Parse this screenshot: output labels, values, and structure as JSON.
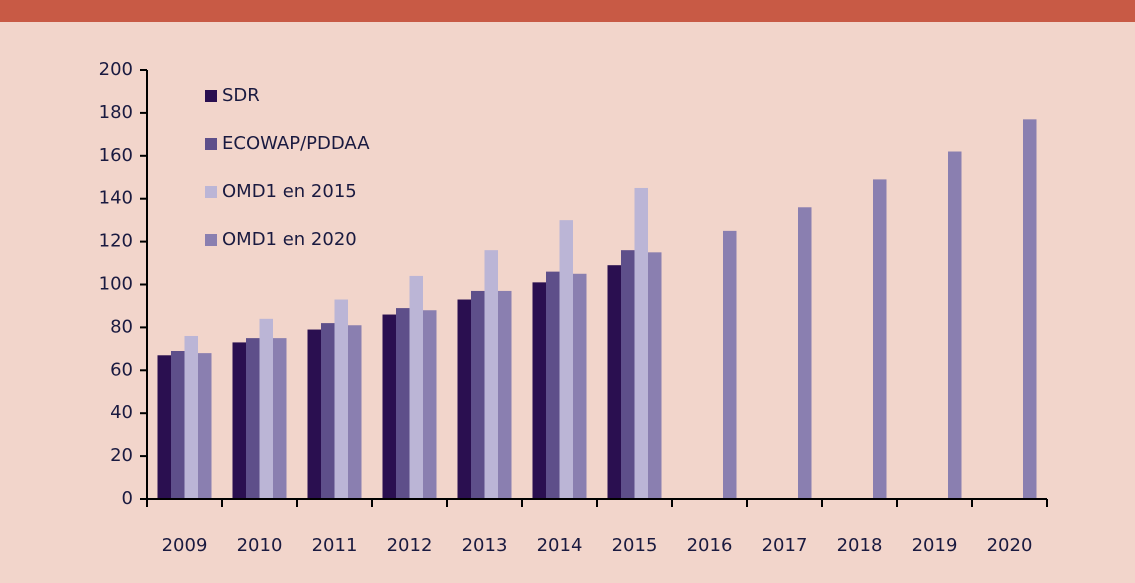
{
  "chart_data": {
    "type": "bar",
    "categories": [
      "2009",
      "2010",
      "2011",
      "2012",
      "2013",
      "2014",
      "2015",
      "2016",
      "2017",
      "2018",
      "2019",
      "2020"
    ],
    "series": [
      {
        "name": "SDR",
        "color": "#2a0f50",
        "values": [
          67,
          73,
          79,
          86,
          93,
          101,
          109,
          null,
          null,
          null,
          null,
          null
        ]
      },
      {
        "name": "ECOWAP/PDDAA",
        "color": "#5e4f8a",
        "values": [
          69,
          75,
          82,
          89,
          97,
          106,
          116,
          null,
          null,
          null,
          null,
          null
        ]
      },
      {
        "name": "OMD1 en 2015",
        "color": "#bbb5d6",
        "values": [
          76,
          84,
          93,
          104,
          116,
          130,
          145,
          null,
          null,
          null,
          null,
          null
        ]
      },
      {
        "name": "OMD1 en 2020",
        "color": "#8a7fb0",
        "values": [
          68,
          75,
          81,
          88,
          97,
          105,
          115,
          125,
          136,
          149,
          162,
          177
        ]
      }
    ],
    "ylim": [
      0,
      200
    ],
    "yticks": [
      0,
      20,
      40,
      60,
      80,
      100,
      120,
      140,
      160,
      180,
      200
    ],
    "grid": false,
    "legend": "top-left"
  }
}
